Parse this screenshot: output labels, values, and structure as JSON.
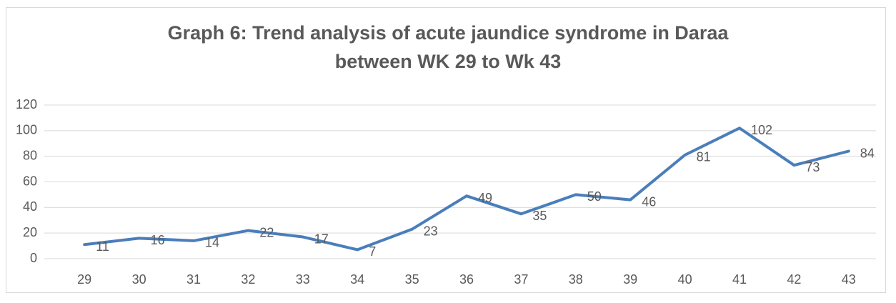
{
  "chart_data": {
    "type": "line",
    "title": "Graph 6: Trend analysis of acute jaundice syndrome in Daraa between WK 29 to Wk 43",
    "categories": [
      "29",
      "30",
      "31",
      "32",
      "33",
      "34",
      "35",
      "36",
      "37",
      "38",
      "39",
      "40",
      "41",
      "42",
      "43"
    ],
    "values": [
      11,
      16,
      14,
      22,
      17,
      7,
      23,
      49,
      35,
      50,
      46,
      81,
      102,
      73,
      84
    ],
    "color": "#4a7ebb",
    "ylim": [
      0,
      120
    ],
    "yticks": [
      0,
      20,
      40,
      60,
      80,
      100,
      120
    ],
    "grid": true
  }
}
